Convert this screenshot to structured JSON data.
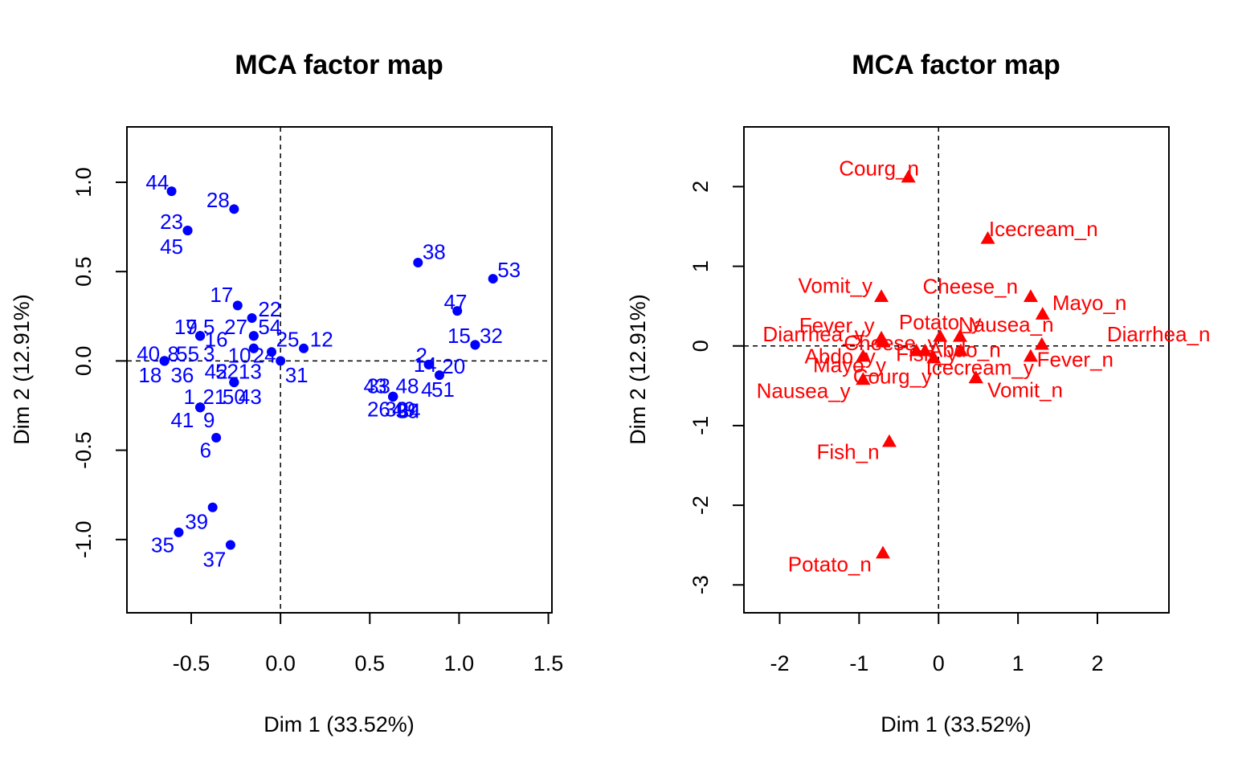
{
  "chart_data": [
    {
      "type": "scatter",
      "title": "MCA factor map",
      "xlabel": "Dim 1 (33.52%)",
      "ylabel": "Dim 2 (12.91%)",
      "xlim": [
        -0.86,
        1.52
      ],
      "ylim": [
        -1.41,
        1.31
      ],
      "xticks": [
        -0.5,
        0.0,
        0.5,
        1.0,
        1.5
      ],
      "xtick_labels": [
        "-0.5",
        "0.0",
        "0.5",
        "1.0",
        "1.5"
      ],
      "yticks": [
        -1.0,
        -0.5,
        0.0,
        0.5,
        1.0
      ],
      "ytick_labels": [
        "-1.0",
        "-0.5",
        "0.0",
        "0.5",
        "1.0"
      ],
      "color": "#0000ff",
      "marker": "circle",
      "reference_lines": [
        0,
        0
      ],
      "points": [
        {
          "x": -0.61,
          "y": 0.95,
          "label": "44",
          "lx": -0.69,
          "ly": 1.0
        },
        {
          "x": -0.26,
          "y": 0.85,
          "label": "28",
          "lx": -0.35,
          "ly": 0.9
        },
        {
          "x": -0.52,
          "y": 0.73,
          "label": "23",
          "lx": -0.61,
          "ly": 0.78
        },
        {
          "x": -0.52,
          "y": 0.73,
          "label": "45",
          "lx": -0.61,
          "ly": 0.64
        },
        {
          "x": 0.77,
          "y": 0.55,
          "label": "38",
          "lx": 0.86,
          "ly": 0.61
        },
        {
          "x": 1.19,
          "y": 0.46,
          "label": "53",
          "lx": 1.28,
          "ly": 0.51
        },
        {
          "x": -0.24,
          "y": 0.31,
          "label": "17",
          "lx": -0.33,
          "ly": 0.37
        },
        {
          "x": 0.99,
          "y": 0.28,
          "label": "47",
          "lx": 0.98,
          "ly": 0.33
        },
        {
          "x": -0.16,
          "y": 0.24,
          "label": "22",
          "lx": -0.06,
          "ly": 0.29
        },
        {
          "x": -0.45,
          "y": 0.14,
          "label": "19",
          "lx": -0.53,
          "ly": 0.19
        },
        {
          "x": -0.45,
          "y": 0.14,
          "label": "7",
          "lx": -0.5,
          "ly": 0.19
        },
        {
          "x": -0.45,
          "y": 0.14,
          "label": "5",
          "lx": -0.4,
          "ly": 0.19
        },
        {
          "x": -0.45,
          "y": 0.14,
          "label": "16",
          "lx": -0.36,
          "ly": 0.12
        },
        {
          "x": -0.15,
          "y": 0.14,
          "label": "27",
          "lx": -0.25,
          "ly": 0.19
        },
        {
          "x": -0.15,
          "y": 0.14,
          "label": "54",
          "lx": -0.06,
          "ly": 0.19
        },
        {
          "x": 1.09,
          "y": 0.09,
          "label": "15",
          "lx": 1.0,
          "ly": 0.14
        },
        {
          "x": 1.09,
          "y": 0.09,
          "label": "32",
          "lx": 1.18,
          "ly": 0.14
        },
        {
          "x": 0.13,
          "y": 0.07,
          "label": "12",
          "lx": 0.23,
          "ly": 0.12
        },
        {
          "x": -0.05,
          "y": 0.05,
          "label": "25",
          "lx": 0.04,
          "ly": 0.12
        },
        {
          "x": -0.15,
          "y": 0.07,
          "label": "10",
          "lx": -0.23,
          "ly": 0.03
        },
        {
          "x": -0.15,
          "y": 0.07,
          "label": "24",
          "lx": -0.09,
          "ly": 0.03
        },
        {
          "x": -0.65,
          "y": 0.0,
          "label": "40",
          "lx": -0.74,
          "ly": 0.04
        },
        {
          "x": -0.65,
          "y": 0.0,
          "label": "8",
          "lx": -0.6,
          "ly": 0.04
        },
        {
          "x": -0.65,
          "y": 0.0,
          "label": "55",
          "lx": -0.52,
          "ly": 0.04
        },
        {
          "x": -0.65,
          "y": 0.0,
          "label": "3",
          "lx": -0.4,
          "ly": 0.04
        },
        {
          "x": -0.65,
          "y": 0.0,
          "label": "18",
          "lx": -0.73,
          "ly": -0.08
        },
        {
          "x": -0.65,
          "y": 0.0,
          "label": "36",
          "lx": -0.55,
          "ly": -0.08
        },
        {
          "x": 0.83,
          "y": -0.02,
          "label": "2",
          "lx": 0.79,
          "ly": 0.03
        },
        {
          "x": 0.83,
          "y": -0.02,
          "label": "14",
          "lx": 0.81,
          "ly": -0.02
        },
        {
          "x": 0.89,
          "y": -0.08,
          "label": "20",
          "lx": 0.97,
          "ly": -0.03
        },
        {
          "x": -0.0,
          "y": 0.0,
          "label": "31",
          "lx": 0.09,
          "ly": -0.08
        },
        {
          "x": -0.26,
          "y": -0.12,
          "label": "42",
          "lx": -0.36,
          "ly": -0.06
        },
        {
          "x": -0.26,
          "y": -0.12,
          "label": "52",
          "lx": -0.3,
          "ly": -0.06
        },
        {
          "x": -0.26,
          "y": -0.12,
          "label": "13",
          "lx": -0.17,
          "ly": -0.06
        },
        {
          "x": 0.63,
          "y": -0.2,
          "label": "33",
          "lx": 0.55,
          "ly": -0.14
        },
        {
          "x": 0.63,
          "y": -0.2,
          "label": "43",
          "lx": 0.53,
          "ly": -0.14
        },
        {
          "x": 0.63,
          "y": -0.2,
          "label": "48",
          "lx": 0.71,
          "ly": -0.14
        },
        {
          "x": 0.63,
          "y": -0.2,
          "label": "4",
          "lx": 0.82,
          "ly": -0.16
        },
        {
          "x": 0.63,
          "y": -0.2,
          "label": "51",
          "lx": 0.91,
          "ly": -0.16
        },
        {
          "x": -0.45,
          "y": -0.26,
          "label": "1",
          "lx": -0.51,
          "ly": -0.2
        },
        {
          "x": -0.45,
          "y": -0.26,
          "label": "21",
          "lx": -0.37,
          "ly": -0.2
        },
        {
          "x": -0.45,
          "y": -0.26,
          "label": "50",
          "lx": -0.26,
          "ly": -0.2
        },
        {
          "x": -0.45,
          "y": -0.26,
          "label": "43",
          "lx": -0.17,
          "ly": -0.2
        },
        {
          "x": -0.45,
          "y": -0.26,
          "label": "41",
          "lx": -0.55,
          "ly": -0.33
        },
        {
          "x": -0.45,
          "y": -0.26,
          "label": "9",
          "lx": -0.4,
          "ly": -0.33
        },
        {
          "x": 0.63,
          "y": -0.2,
          "label": "26",
          "lx": 0.55,
          "ly": -0.27
        },
        {
          "x": 0.63,
          "y": -0.2,
          "label": "30",
          "lx": 0.65,
          "ly": -0.27
        },
        {
          "x": 0.63,
          "y": -0.2,
          "label": "49",
          "lx": 0.69,
          "ly": -0.27
        },
        {
          "x": 0.63,
          "y": -0.2,
          "label": "34",
          "lx": 0.72,
          "ly": -0.28
        },
        {
          "x": 0.63,
          "y": -0.2,
          "label": "39",
          "lx": 0.71,
          "ly": -0.28
        },
        {
          "x": -0.36,
          "y": -0.43,
          "label": "6",
          "lx": -0.42,
          "ly": -0.5
        },
        {
          "x": -0.38,
          "y": -0.82,
          "label": "39",
          "lx": -0.47,
          "ly": -0.9
        },
        {
          "x": -0.57,
          "y": -0.96,
          "label": "35",
          "lx": -0.66,
          "ly": -1.03
        },
        {
          "x": -0.28,
          "y": -1.03,
          "label": "37",
          "lx": -0.37,
          "ly": -1.11
        }
      ]
    },
    {
      "type": "scatter",
      "title": "MCA factor map",
      "xlabel": "Dim 1 (33.52%)",
      "ylabel": "Dim 2 (12.91%)",
      "xlim": [
        -2.45,
        2.9
      ],
      "ylim": [
        -3.35,
        2.75
      ],
      "xticks": [
        -2,
        -1,
        0,
        1,
        2
      ],
      "xtick_labels": [
        "-2",
        "-1",
        "0",
        "1",
        "2"
      ],
      "yticks": [
        -3,
        -2,
        -1,
        0,
        1,
        2
      ],
      "ytick_labels": [
        "-3",
        "-2",
        "-1",
        "0",
        "1",
        "2"
      ],
      "color": "#ff0000",
      "marker": "triangle",
      "reference_lines": [
        0,
        0
      ],
      "points": [
        {
          "x": -0.38,
          "y": 2.12,
          "label": "Courg_n",
          "lx": -0.75,
          "ly": 2.23
        },
        {
          "x": 0.62,
          "y": 1.35,
          "label": "Icecream_n",
          "lx": 1.32,
          "ly": 1.47
        },
        {
          "x": -0.72,
          "y": 0.62,
          "label": "Vomit_y",
          "lx": -1.3,
          "ly": 0.76
        },
        {
          "x": 1.16,
          "y": 0.62,
          "label": "Cheese_n",
          "lx": 0.4,
          "ly": 0.75
        },
        {
          "x": 1.31,
          "y": 0.4,
          "label": "Mayo_n",
          "lx": 1.9,
          "ly": 0.54
        },
        {
          "x": -0.72,
          "y": 0.1,
          "label": "Fever_y",
          "lx": -1.28,
          "ly": 0.26
        },
        {
          "x": 0.02,
          "y": 0.12,
          "label": "Potato_y",
          "lx": 0.02,
          "ly": 0.3
        },
        {
          "x": 0.27,
          "y": 0.12,
          "label": "Nausea_n",
          "lx": 0.85,
          "ly": 0.27
        },
        {
          "x": -0.7,
          "y": 0.05,
          "label": "Diarrhea_y",
          "lx": -1.57,
          "ly": 0.15
        },
        {
          "x": -0.28,
          "y": -0.06,
          "label": "Cheese_y",
          "lx": -0.6,
          "ly": 0.04
        },
        {
          "x": 1.3,
          "y": 0.02,
          "label": "Diarrhea_n",
          "lx": 2.77,
          "ly": 0.15
        },
        {
          "x": -0.95,
          "y": -0.13,
          "label": "Abdo_y",
          "lx": -1.24,
          "ly": -0.13
        },
        {
          "x": -0.17,
          "y": -0.06,
          "label": "Fish_y",
          "lx": -0.15,
          "ly": -0.1
        },
        {
          "x": 0.28,
          "y": -0.06,
          "label": "Abdo_n",
          "lx": 0.33,
          "ly": -0.05
        },
        {
          "x": -0.95,
          "y": -0.42,
          "label": "Mayo_y",
          "lx": -1.12,
          "ly": -0.24
        },
        {
          "x": -0.06,
          "y": -0.15,
          "label": "Courg_y",
          "lx": -0.58,
          "ly": -0.38
        },
        {
          "x": 0.47,
          "y": -0.4,
          "label": "Icecream_y",
          "lx": 0.52,
          "ly": -0.27
        },
        {
          "x": 1.16,
          "y": -0.13,
          "label": "Fever_n",
          "lx": 1.72,
          "ly": -0.17
        },
        {
          "x": 0.47,
          "y": -0.4,
          "label": "Vomit_n",
          "lx": 1.09,
          "ly": -0.55
        },
        {
          "x": -0.95,
          "y": -0.42,
          "label": "Nausea_y",
          "lx": -1.7,
          "ly": -0.56
        },
        {
          "x": -0.62,
          "y": -1.2,
          "label": "Fish_n",
          "lx": -1.14,
          "ly": -1.33
        },
        {
          "x": -0.7,
          "y": -2.6,
          "label": "Potato_n",
          "lx": -1.37,
          "ly": -2.74
        }
      ]
    }
  ]
}
